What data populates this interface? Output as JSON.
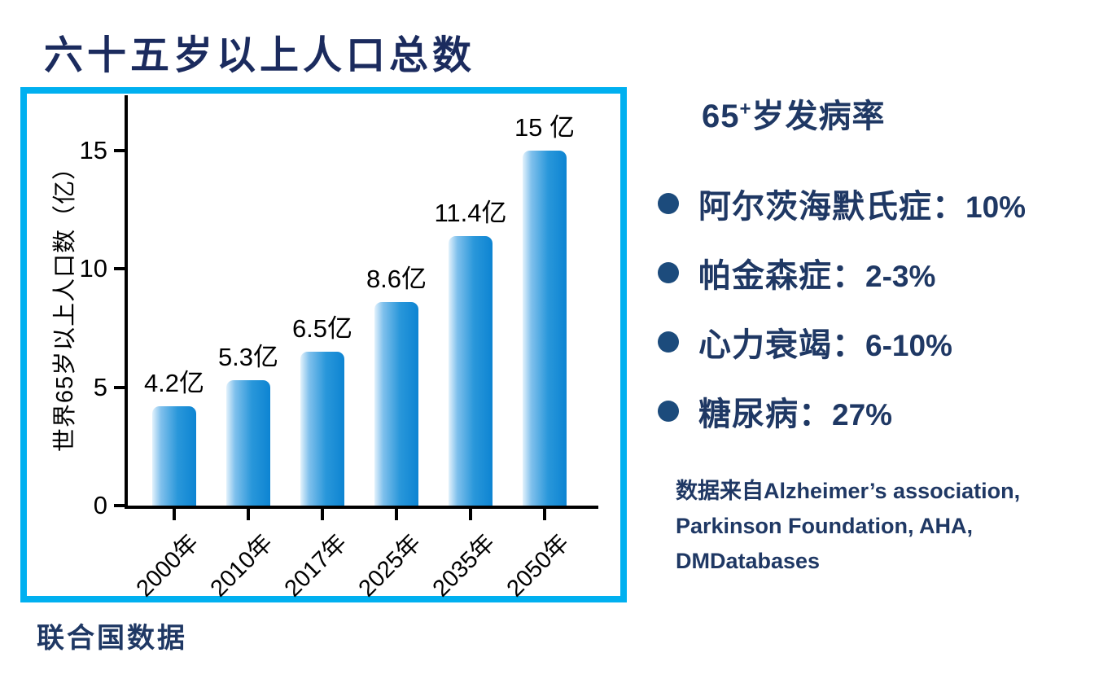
{
  "page": {
    "title": "六十五岁以上人口总数",
    "footnote": "联合国数据"
  },
  "chart_data": {
    "type": "bar",
    "title": "六十五岁以上人口总数",
    "categories": [
      "2000年",
      "2010年",
      "2017年",
      "2025年",
      "2035年",
      "2050年"
    ],
    "values": [
      4.2,
      5.3,
      6.5,
      8.6,
      11.4,
      15
    ],
    "bar_labels": [
      "4.2亿",
      "5.3亿",
      "6.5亿",
      "8.6亿",
      "11.4亿",
      "15 亿"
    ],
    "xlabel": "",
    "ylabel": "世界65岁以上人口数（亿）",
    "ylim": [
      0,
      17.34
    ],
    "yticks": [
      0,
      5,
      10,
      15
    ],
    "grid": false,
    "legend": "none",
    "bar_gradient": [
      "#e3f2fc",
      "#7fc0ec",
      "#2997da",
      "#0d84d2"
    ]
  },
  "right_panel": {
    "heading_base": "65",
    "heading_sup": "+",
    "heading_rest": "岁发病率",
    "bullets": [
      {
        "label": "阿尔茨海默氏症：",
        "value": "10%"
      },
      {
        "label": "帕金森症：",
        "value": "2-3%"
      },
      {
        "label": "心力衰竭：",
        "value": "6-10%"
      },
      {
        "label": "糖尿病：",
        "value": "27%"
      }
    ],
    "source_lines": [
      "数据来自Alzheimer’s association,",
      "Parkinson Foundation, AHA,",
      "DMDatabases"
    ]
  },
  "colors": {
    "navy_title": "#1b2b5e",
    "navy_text": "#1f3864",
    "bullet_dot": "#1c4b7c",
    "frame_border": "#00b0f0",
    "axis": "#000000"
  }
}
